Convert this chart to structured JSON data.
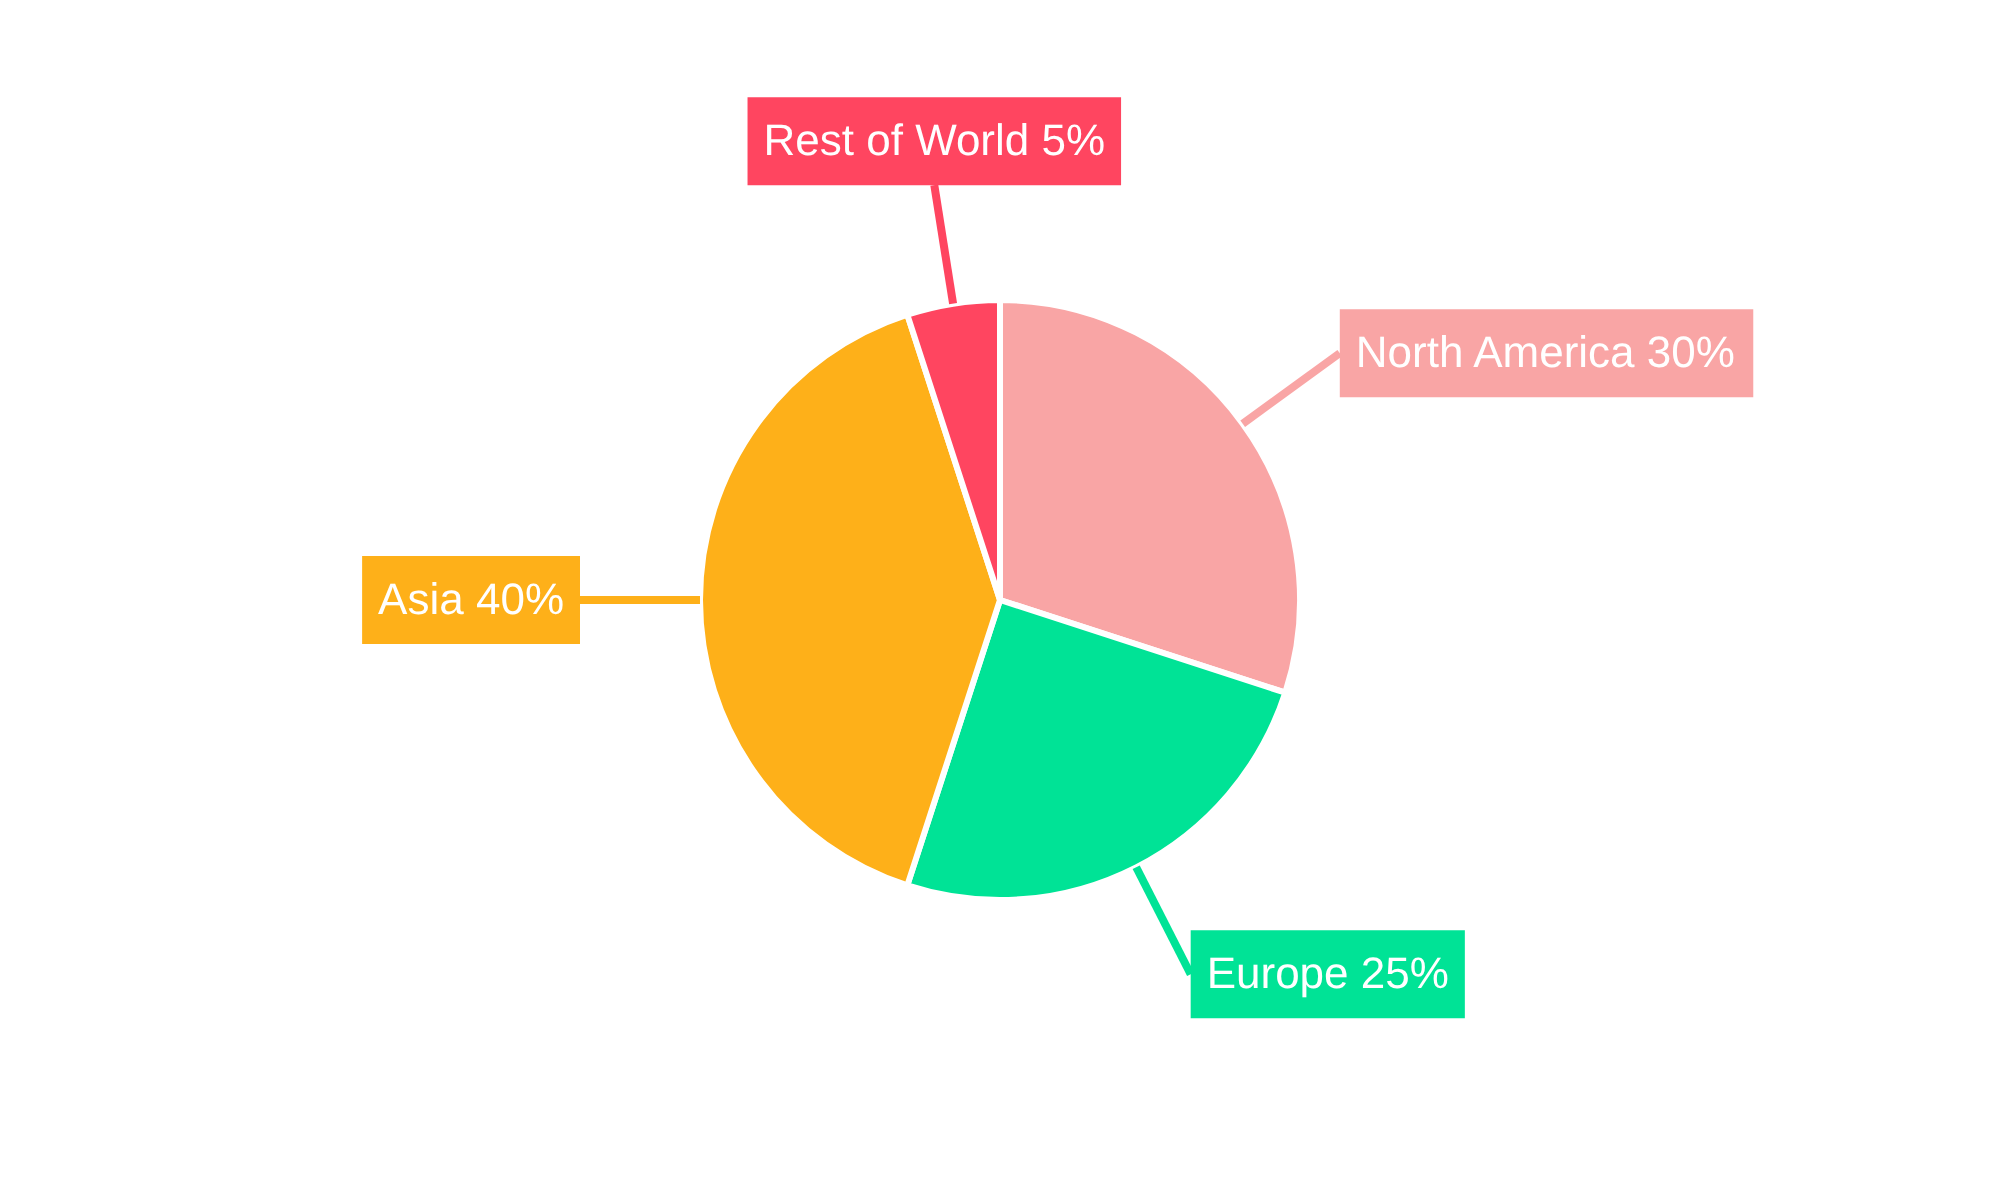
{
  "chart_data": {
    "type": "pie",
    "categories": [
      "North America",
      "Europe",
      "Asia",
      "Rest of World"
    ],
    "values": [
      30,
      25,
      40,
      5
    ],
    "value_labels": [
      "30%",
      "25%",
      "40%",
      "5%"
    ],
    "colors": [
      "#f9a5a5",
      "#00e396",
      "#feb019",
      "#ff4560"
    ],
    "legend": false
  }
}
